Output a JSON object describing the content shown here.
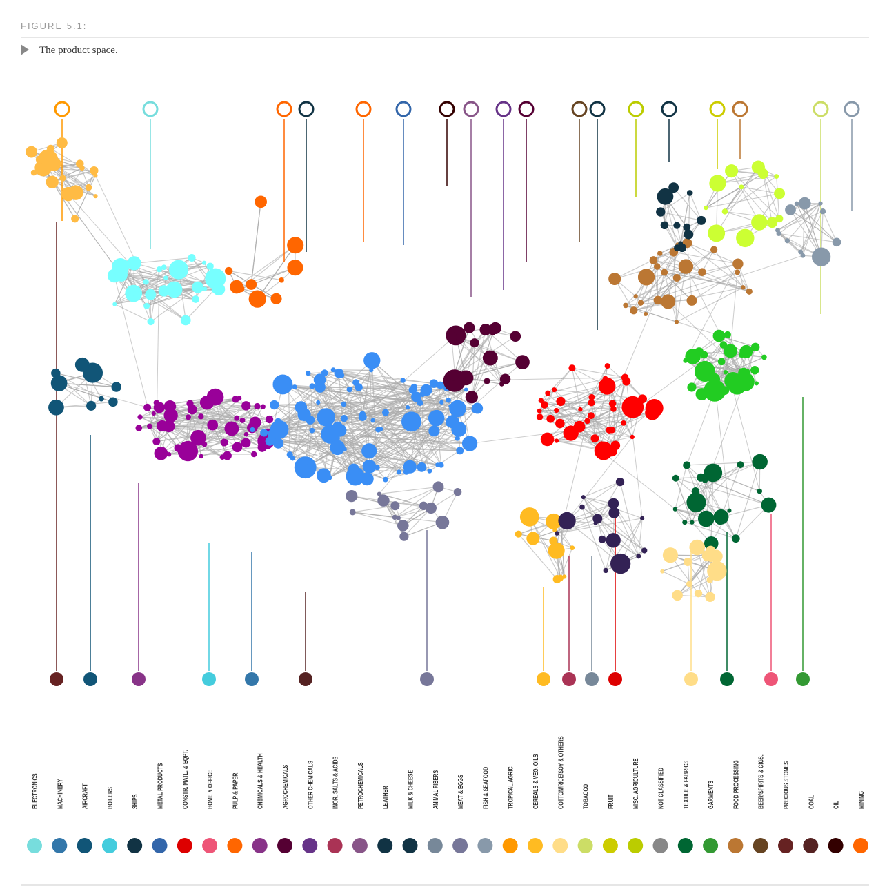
{
  "header": {
    "label": "FIGURE 5.1:",
    "caption": "The product space."
  },
  "legend": {
    "labels": [
      "ELECTRONICS",
      "MACHINERY",
      "AIRCRAFT",
      "BOILERS",
      "SHIPS",
      "METAL PRODUCTS",
      "CONSTR. MATL. & EQPT.",
      "HOME & OFFICE",
      "PULP & PAPER",
      "CHEMICALS & HEALTH",
      "AGROCHEMICALS",
      "OTHER CHEMICALS",
      "INOR. SALTS & ACIDS",
      "PETROCHEMICALS",
      "LEATHER",
      "MILK & CHEESE",
      "ANIMAL FIBERS",
      "MEAT & EGGS",
      "FISH & SEAFOOD",
      "TROPICAL AGRIC.",
      "CEREALS & VEG. OILS",
      "COTTON/RICE/SOY & OTHERS",
      "TOBACCO",
      "FRUIT",
      "MISC. AGRICULTURE",
      "NOT CLASSIFIED",
      "TEXTILE & FABRICS",
      "GARMENTS",
      "FOOD PROCESSING",
      "BEER/SPIRITS & CIGS.",
      "PRECIOUS STONES",
      "COAL",
      "OIL",
      "MINING"
    ]
  }
}
